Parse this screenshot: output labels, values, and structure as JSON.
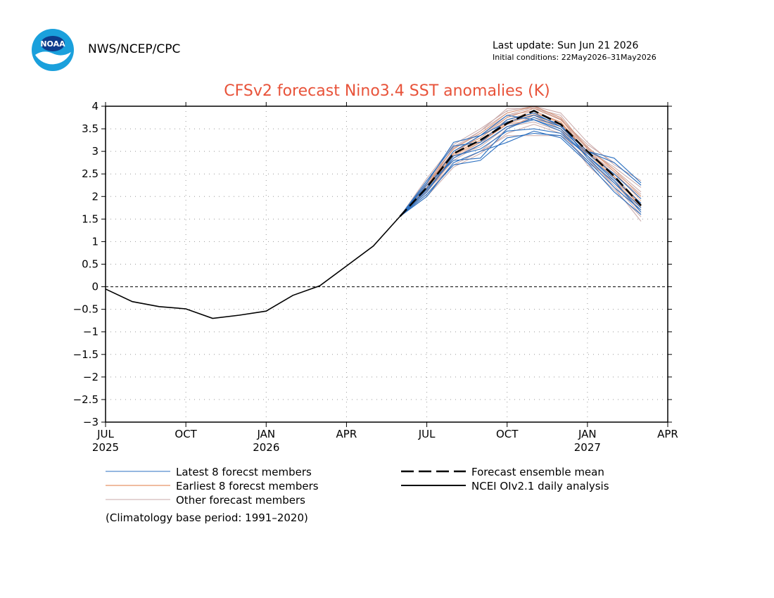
{
  "header": {
    "agency": "NWS/NCEP/CPC",
    "last_update": "Last update: Sun Jun 21 2026",
    "initial_conditions": "Initial conditions: 22May2026–31May2026",
    "logo_icon": "noaa-logo-icon",
    "logo_text": "NOAA"
  },
  "colors": {
    "title": "#e8533a",
    "latest": "#2a6fc0",
    "earliest": "#e07840",
    "other": "#c8a8a8",
    "axis": "#000000"
  },
  "chart_data": {
    "type": "line",
    "title": "CFSv2 forecast Nino3.4 SST anomalies (K)",
    "ylim": [
      -3,
      4
    ],
    "yticks": [
      "4",
      "3.5",
      "3",
      "2.5",
      "2",
      "1.5",
      "1",
      "0.5",
      "0",
      "−0.5",
      "−1",
      "−1.5",
      "−2",
      "−2.5",
      "−3"
    ],
    "ytick_values": [
      4,
      3.5,
      3,
      2.5,
      2,
      1.5,
      1,
      0.5,
      0,
      -0.5,
      -1,
      -1.5,
      -2,
      -2.5,
      -3
    ],
    "x_range": [
      "2025-07",
      "2027-04"
    ],
    "xticks": [
      {
        "month": "2025-07",
        "label": "JUL",
        "year": "2025"
      },
      {
        "month": "2025-10",
        "label": "OCT",
        "year": ""
      },
      {
        "month": "2026-01",
        "label": "JAN",
        "year": "2026"
      },
      {
        "month": "2026-04",
        "label": "APR",
        "year": ""
      },
      {
        "month": "2026-07",
        "label": "JUL",
        "year": ""
      },
      {
        "month": "2026-10",
        "label": "OCT",
        "year": ""
      },
      {
        "month": "2027-01",
        "label": "JAN",
        "year": "2027"
      },
      {
        "month": "2027-04",
        "label": "APR",
        "year": ""
      }
    ],
    "grid": true,
    "zero_line": true,
    "observed": {
      "name": "NCEI OIv2.1 daily analysis",
      "x": [
        "2025-07",
        "2025-08",
        "2025-09",
        "2025-10",
        "2025-11",
        "2025-12",
        "2026-01",
        "2026-02",
        "2026-03",
        "2026-04",
        "2026-05",
        "2026-06"
      ],
      "y": [
        -0.05,
        -0.33,
        -0.44,
        -0.49,
        -0.7,
        -0.63,
        -0.54,
        -0.19,
        0.02,
        0.46,
        0.9,
        1.56
      ]
    },
    "forecast_x": [
      "2026-06",
      "2026-07",
      "2026-08",
      "2026-09",
      "2026-10",
      "2026-11",
      "2026-12",
      "2027-01",
      "2027-02",
      "2027-03"
    ],
    "ensemble_mean": {
      "name": "Forecast ensemble mean",
      "y": [
        1.56,
        2.2,
        2.95,
        3.25,
        3.62,
        3.9,
        3.6,
        3.0,
        2.45,
        1.8
      ]
    },
    "latest_members": [
      [
        1.56,
        2.35,
        3.12,
        3.2,
        3.7,
        3.85,
        3.55,
        3.0,
        2.85,
        2.3
      ],
      [
        1.56,
        2.25,
        2.8,
        2.85,
        3.5,
        3.75,
        3.55,
        3.0,
        2.75,
        2.25
      ],
      [
        1.56,
        2.18,
        3.0,
        3.35,
        3.8,
        3.7,
        3.5,
        2.95,
        2.5,
        1.95
      ],
      [
        1.56,
        2.1,
        2.9,
        3.05,
        3.45,
        3.5,
        3.4,
        2.9,
        2.4,
        1.85
      ],
      [
        1.56,
        2.3,
        3.2,
        3.35,
        3.65,
        3.8,
        3.6,
        2.85,
        2.3,
        1.75
      ],
      [
        1.56,
        2.05,
        2.7,
        2.8,
        3.3,
        3.4,
        3.35,
        2.8,
        2.2,
        1.7
      ],
      [
        1.56,
        2.0,
        2.75,
        3.0,
        3.2,
        3.45,
        3.3,
        2.75,
        2.1,
        1.6
      ],
      [
        1.56,
        2.15,
        2.85,
        3.15,
        3.55,
        3.7,
        3.45,
        2.9,
        2.35,
        1.65
      ]
    ],
    "earliest_members": [
      [
        1.56,
        2.25,
        3.0,
        3.35,
        3.75,
        3.95,
        3.7,
        3.05,
        2.6,
        2.0
      ],
      [
        1.56,
        2.2,
        2.95,
        3.25,
        3.65,
        3.85,
        3.65,
        3.0,
        2.45,
        1.85
      ],
      [
        1.56,
        2.15,
        2.9,
        3.2,
        3.6,
        3.8,
        3.55,
        2.9,
        2.35,
        1.75
      ],
      [
        1.56,
        2.3,
        3.05,
        3.4,
        3.85,
        4.0,
        3.75,
        3.1,
        2.55,
        1.9
      ],
      [
        1.56,
        2.1,
        2.85,
        3.15,
        3.55,
        3.75,
        3.5,
        2.85,
        2.3,
        1.7
      ],
      [
        1.56,
        2.2,
        3.0,
        3.3,
        3.7,
        3.9,
        3.6,
        3.0,
        2.5,
        1.95
      ],
      [
        1.56,
        2.25,
        2.95,
        3.25,
        3.65,
        3.85,
        3.65,
        2.95,
        2.4,
        1.8
      ],
      [
        1.56,
        2.18,
        2.92,
        3.22,
        3.62,
        3.82,
        3.58,
        2.98,
        2.42,
        1.78
      ]
    ],
    "other_members": [
      [
        1.56,
        2.4,
        3.15,
        3.5,
        3.9,
        4.0,
        3.85,
        3.2,
        2.7,
        2.35
      ],
      [
        1.56,
        2.2,
        3.1,
        3.45,
        3.95,
        3.95,
        3.8,
        3.05,
        2.65,
        2.2
      ],
      [
        1.56,
        2.05,
        2.75,
        3.0,
        3.35,
        3.35,
        3.35,
        2.95,
        2.5,
        2.0
      ],
      [
        1.56,
        2.15,
        2.7,
        3.0,
        3.5,
        3.8,
        3.5,
        2.7,
        2.15,
        1.55
      ],
      [
        1.56,
        2.35,
        3.05,
        3.45,
        3.85,
        4.0,
        3.75,
        2.9,
        2.2,
        1.45
      ],
      [
        1.56,
        2.0,
        2.65,
        2.95,
        3.4,
        3.6,
        3.4,
        2.8,
        2.3,
        1.65
      ],
      [
        1.56,
        2.25,
        3.0,
        3.3,
        3.75,
        3.95,
        3.7,
        3.15,
        2.75,
        2.25
      ],
      [
        1.56,
        2.1,
        2.85,
        3.2,
        3.6,
        3.7,
        3.6,
        3.1,
        2.6,
        2.1
      ],
      [
        1.56,
        2.3,
        2.95,
        3.35,
        3.8,
        3.9,
        3.65,
        2.85,
        2.25,
        1.6
      ],
      [
        1.56,
        2.2,
        2.9,
        3.1,
        3.55,
        3.65,
        3.45,
        2.75,
        2.35,
        1.85
      ],
      [
        1.56,
        2.12,
        2.8,
        3.15,
        3.7,
        3.85,
        3.55,
        3.0,
        2.55,
        2.05
      ],
      [
        1.56,
        2.28,
        3.08,
        3.4,
        3.8,
        3.98,
        3.72,
        3.08,
        2.45,
        1.75
      ]
    ],
    "legend": {
      "latest": "Latest 8 forecst members",
      "earliest": "Earliest 8 forecst members",
      "other": "Other forecast members",
      "mean": "Forecast ensemble mean",
      "observed": "NCEI OIv2.1 daily analysis",
      "climatology": "(Climatology base period: 1991–2020)"
    }
  }
}
